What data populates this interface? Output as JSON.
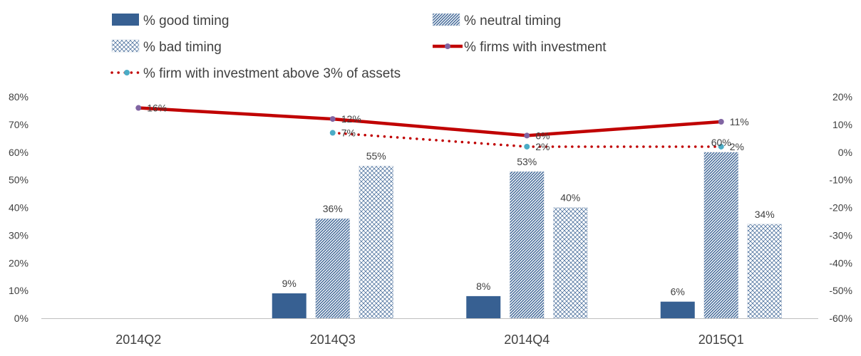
{
  "chart_data": {
    "type": "bar",
    "categories": [
      "2014Q2",
      "2014Q3",
      "2014Q4",
      "2015Q1"
    ],
    "series": [
      {
        "name": "% good timing",
        "kind": "bar",
        "axis": "left",
        "pattern": "solid",
        "color": "#376092",
        "values": [
          null,
          9,
          8,
          6
        ],
        "labels": [
          "",
          "9%",
          "8%",
          "6%"
        ]
      },
      {
        "name": "% neutral timing",
        "kind": "bar",
        "axis": "left",
        "pattern": "diagonal",
        "color": "#376092",
        "values": [
          null,
          36,
          53,
          60
        ],
        "labels": [
          "",
          "36%",
          "53%",
          "60%"
        ]
      },
      {
        "name": "% bad timing",
        "kind": "bar",
        "axis": "left",
        "pattern": "crosshatch",
        "color": "#376092",
        "values": [
          null,
          55,
          40,
          34
        ],
        "labels": [
          "",
          "55%",
          "40%",
          "34%"
        ]
      },
      {
        "name": "% firms with investment",
        "kind": "line",
        "axis": "right",
        "style": "solid",
        "color": "#C00000",
        "marker_color": "#8064A2",
        "values": [
          16,
          12,
          6,
          11
        ],
        "labels": [
          "16%",
          "12%",
          "6%",
          "11%"
        ]
      },
      {
        "name": "% firm with investment above 3% of assets",
        "kind": "line",
        "axis": "right",
        "style": "dotted",
        "color": "#C00000",
        "marker_color": "#4BACC6",
        "values": [
          null,
          7,
          2,
          2
        ],
        "labels": [
          "",
          "7%",
          "2%",
          "2%"
        ]
      }
    ],
    "y_left": {
      "min": 0,
      "max": 80,
      "step": 10,
      "tick_labels": [
        "0%",
        "10%",
        "20%",
        "30%",
        "40%",
        "50%",
        "60%",
        "70%",
        "80%"
      ]
    },
    "y_right": {
      "min": -60,
      "max": 20,
      "step": 10,
      "tick_labels": [
        "-60%",
        "-50%",
        "-40%",
        "-30%",
        "-20%",
        "-10%",
        "0%",
        "10%",
        "20%"
      ]
    },
    "legend_position": "top",
    "grid": false,
    "title": "",
    "xlabel": "",
    "ylabel": ""
  }
}
